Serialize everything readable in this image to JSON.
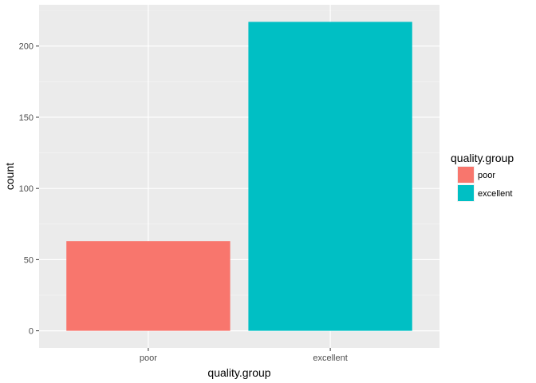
{
  "chart_data": {
    "type": "bar",
    "title": "",
    "xlabel": "quality.group",
    "ylabel": "count",
    "categories": [
      "poor",
      "excellent"
    ],
    "values": [
      63,
      217
    ],
    "ylim": [
      -12,
      229
    ],
    "yticks": [
      0,
      50,
      100,
      150,
      200
    ],
    "ytick_labels": [
      "0",
      "50",
      "100",
      "150",
      "200"
    ],
    "grid": true,
    "legend": {
      "title": "quality.group",
      "position": "right",
      "entries": [
        {
          "label": "poor",
          "color": "#F8766D"
        },
        {
          "label": "excellent",
          "color": "#00BFC4"
        }
      ]
    },
    "colors": [
      "#F8766D",
      "#00BFC4"
    ]
  },
  "theme": {
    "panel_background": "#EBEBEB",
    "grid_major": "#FFFFFF",
    "grid_minor": "#F5F5F5",
    "tick_color": "#333333",
    "text_color": "#4D4D4D"
  }
}
